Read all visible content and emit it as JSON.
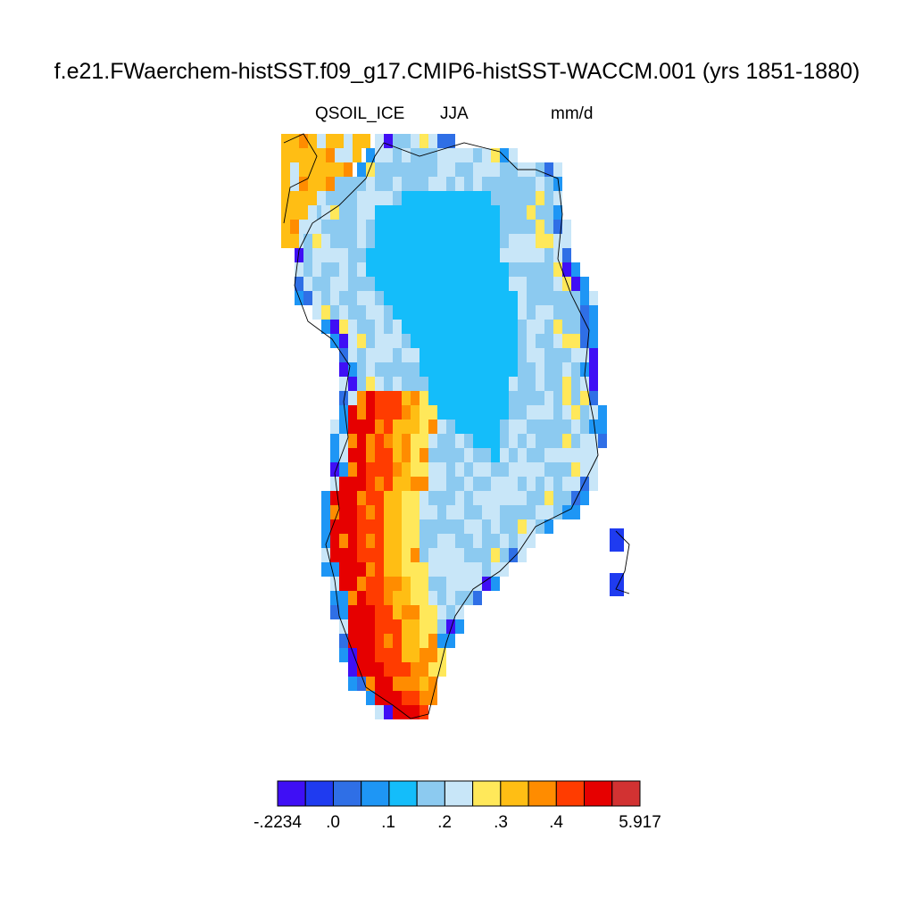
{
  "figure": {
    "title": "f.e21.FWaerchem-histSST.f09_g17.CMIP6-histSST-WACCM.001 (yrs 1851-1880)",
    "variable": "QSOIL_ICE",
    "season": "JJA",
    "units": "mm/d"
  },
  "colorbar": {
    "colors": [
      "#3f0ff5",
      "#1f3bf0",
      "#2f6fe6",
      "#1e96f5",
      "#14bdfa",
      "#8ccaf0",
      "#c8e6f8",
      "#ffe85a",
      "#ffbe14",
      "#ff8c00",
      "#ff3c00",
      "#e60000",
      "#d23232"
    ],
    "labels": [
      "-.2234",
      ".0",
      ".1",
      ".2",
      ".3",
      ".4",
      "5.917"
    ]
  },
  "map": {
    "region": "Greenland",
    "ocean_color": "#ffffff",
    "coastline_color": "#000000"
  }
}
